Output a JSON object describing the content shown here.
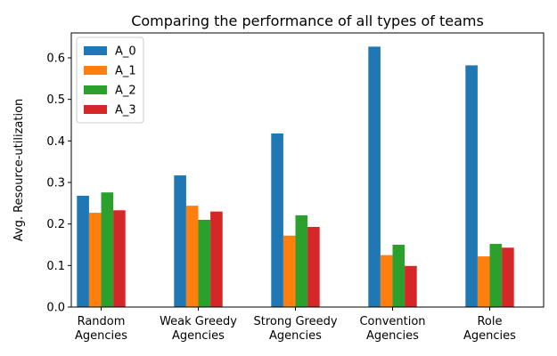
{
  "chart_data": {
    "type": "bar",
    "title": "Comparing the performance of all types of teams",
    "xlabel": "",
    "ylabel": "Avg. Resource-utilization",
    "ylim": [
      0,
      0.66
    ],
    "yticks": [
      0.0,
      0.1,
      0.2,
      0.3,
      0.4,
      0.5,
      0.6
    ],
    "ytick_labels": [
      "0.0",
      "0.1",
      "0.2",
      "0.3",
      "0.4",
      "0.5",
      "0.6"
    ],
    "categories": [
      [
        "Random",
        "Agencies"
      ],
      [
        "Weak Greedy",
        "Agencies"
      ],
      [
        "Strong Greedy",
        "Agencies"
      ],
      [
        "Convention",
        "Agencies"
      ],
      [
        "Role",
        "Agencies"
      ]
    ],
    "series": [
      {
        "name": "A_0",
        "color": "#1f77b4",
        "values": [
          0.268,
          0.317,
          0.418,
          0.627,
          0.582
        ]
      },
      {
        "name": "A_1",
        "color": "#ff7f0e",
        "values": [
          0.227,
          0.244,
          0.172,
          0.125,
          0.122
        ]
      },
      {
        "name": "A_2",
        "color": "#2ca02c",
        "values": [
          0.276,
          0.21,
          0.221,
          0.15,
          0.152
        ]
      },
      {
        "name": "A_3",
        "color": "#d62728",
        "values": [
          0.233,
          0.23,
          0.193,
          0.099,
          0.143
        ]
      }
    ],
    "legend": "top-left",
    "grid": false
  }
}
